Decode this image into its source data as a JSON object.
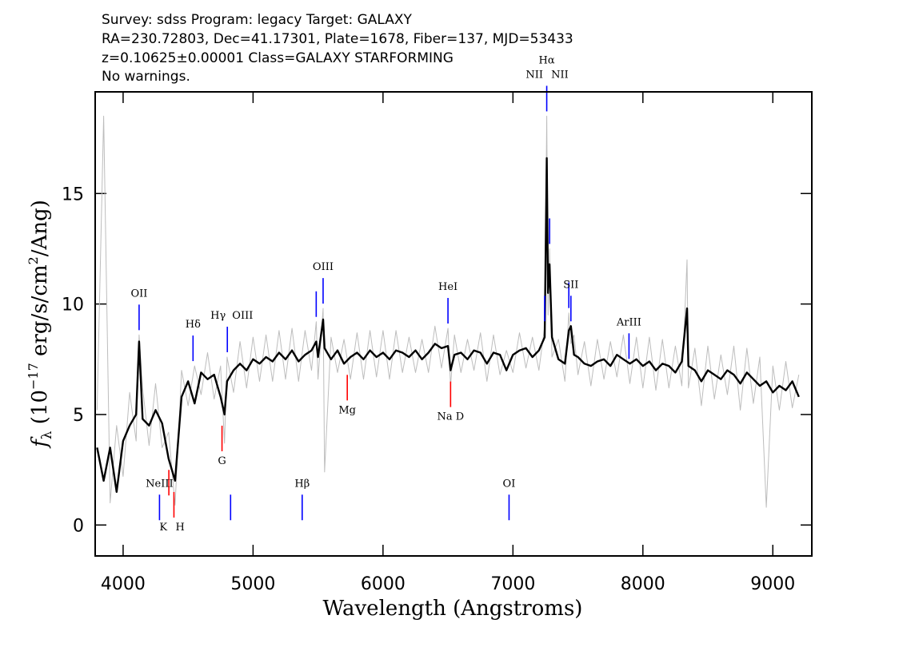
{
  "chart_data": {
    "type": "line",
    "header_lines": [
      "Survey: sdss Program: legacy Target: GALAXY",
      "RA=230.72803, Dec=41.17301, Plate=1678, Fiber=137, MJD=53433",
      "z=0.10625±0.00001 Class=GALAXY STARFORMING",
      "No warnings."
    ],
    "xlabel": "Wavelength (Angstroms)",
    "ylabel_parts": [
      "f",
      "λ",
      " (10",
      "−17",
      " erg/s/cm",
      "2",
      "/Ang)"
    ],
    "xlim": [
      3785,
      9300
    ],
    "ylim": [
      -1.4,
      19.6
    ],
    "xticks": [
      4000,
      5000,
      6000,
      7000,
      8000,
      9000
    ],
    "yticks": [
      0,
      5,
      10,
      15
    ],
    "x": [
      3800,
      3850,
      3900,
      3950,
      4000,
      4050,
      4100,
      4123,
      4150,
      4200,
      4250,
      4300,
      4350,
      4400,
      4450,
      4500,
      4550,
      4600,
      4650,
      4700,
      4750,
      4780,
      4800,
      4850,
      4900,
      4950,
      5000,
      5050,
      5100,
      5150,
      5200,
      5250,
      5300,
      5350,
      5400,
      5450,
      5486,
      5500,
      5539,
      5550,
      5600,
      5650,
      5700,
      5750,
      5800,
      5850,
      5900,
      5950,
      6000,
      6050,
      6100,
      6150,
      6200,
      6250,
      6300,
      6350,
      6400,
      6450,
      6500,
      6520,
      6550,
      6600,
      6650,
      6700,
      6750,
      6800,
      6850,
      6900,
      6950,
      7000,
      7050,
      7100,
      7150,
      7200,
      7244,
      7260,
      7270,
      7282,
      7300,
      7350,
      7400,
      7430,
      7446,
      7470,
      7500,
      7550,
      7600,
      7650,
      7700,
      7750,
      7800,
      7850,
      7900,
      7950,
      8000,
      8050,
      8100,
      8150,
      8200,
      8250,
      8300,
      8340,
      8350,
      8400,
      8450,
      8500,
      8550,
      8600,
      8650,
      8700,
      8750,
      8800,
      8850,
      8900,
      8950,
      9000,
      9050,
      9100,
      9150,
      9200
    ],
    "series": [
      {
        "color": "#bdbdbd",
        "values": [
          5.2,
          18.5,
          1.0,
          4.5,
          2.2,
          6.0,
          3.8,
          8.6,
          6.2,
          3.6,
          6.4,
          3.5,
          4.2,
          0.9,
          7.0,
          5.4,
          7.2,
          5.9,
          7.8,
          5.7,
          7.2,
          3.7,
          7.6,
          6.0,
          8.3,
          6.2,
          8.5,
          6.5,
          8.6,
          6.5,
          8.8,
          6.6,
          8.9,
          6.5,
          8.8,
          7.0,
          9.2,
          6.6,
          9.8,
          2.4,
          8.5,
          6.9,
          8.4,
          6.6,
          8.7,
          6.6,
          8.8,
          6.7,
          8.8,
          6.6,
          8.8,
          6.9,
          8.5,
          6.9,
          8.4,
          6.9,
          9.0,
          7.1,
          8.9,
          6.3,
          8.6,
          6.9,
          8.4,
          7.0,
          8.7,
          6.5,
          8.6,
          6.8,
          7.9,
          6.9,
          8.7,
          7.1,
          8.5,
          7.0,
          9.0,
          18.5,
          9.5,
          12.5,
          7.6,
          8.4,
          6.5,
          9.6,
          8.2,
          8.6,
          6.8,
          8.3,
          6.3,
          8.4,
          6.6,
          8.3,
          6.7,
          8.6,
          6.4,
          8.5,
          6.2,
          8.5,
          6.1,
          8.4,
          6.2,
          8.1,
          6.3,
          12.0,
          6.2,
          8.0,
          5.4,
          8.1,
          5.7,
          7.7,
          5.9,
          8.1,
          5.2,
          8.0,
          5.5,
          7.6,
          0.8,
          7.2,
          5.2,
          7.4,
          5.3,
          6.8
        ]
      },
      {
        "color": "#000000",
        "values": [
          3.5,
          2.0,
          3.5,
          1.5,
          3.8,
          4.5,
          5.0,
          8.3,
          4.8,
          4.5,
          5.2,
          4.6,
          3.0,
          2.0,
          5.8,
          6.5,
          5.5,
          6.9,
          6.6,
          6.8,
          5.8,
          5.0,
          6.5,
          7.0,
          7.3,
          7.0,
          7.5,
          7.3,
          7.6,
          7.4,
          7.8,
          7.5,
          7.9,
          7.4,
          7.7,
          7.9,
          8.3,
          7.6,
          9.3,
          8.0,
          7.5,
          7.9,
          7.3,
          7.6,
          7.8,
          7.5,
          7.9,
          7.6,
          7.8,
          7.5,
          7.9,
          7.8,
          7.6,
          7.9,
          7.5,
          7.8,
          8.2,
          8.0,
          8.1,
          7.0,
          7.7,
          7.8,
          7.5,
          7.9,
          7.8,
          7.3,
          7.8,
          7.7,
          7.0,
          7.7,
          7.9,
          8.0,
          7.6,
          7.9,
          8.5,
          16.6,
          10.5,
          11.8,
          8.5,
          7.5,
          7.3,
          8.8,
          9.0,
          7.7,
          7.6,
          7.3,
          7.2,
          7.4,
          7.5,
          7.2,
          7.7,
          7.5,
          7.3,
          7.5,
          7.2,
          7.4,
          7.0,
          7.3,
          7.2,
          6.9,
          7.4,
          9.8,
          7.2,
          7.0,
          6.5,
          7.0,
          6.8,
          6.6,
          7.0,
          6.8,
          6.4,
          6.9,
          6.6,
          6.3,
          6.5,
          6.0,
          6.3,
          6.1,
          6.5,
          5.8
        ]
      }
    ],
    "emission_color": "#0000ff",
    "absorption_color": "#ff0000",
    "markers": [
      {
        "label": "OII",
        "x": 4123,
        "kind": "emission"
      },
      {
        "label": "NeIII",
        "x": 4280,
        "kind": "emission"
      },
      {
        "label": "Hδ",
        "x": 4538,
        "kind": "emission"
      },
      {
        "label": "Hγ",
        "x": 4802,
        "kind": "emission"
      },
      {
        "label": "OIII",
        "x": 4827,
        "kind": "emission"
      },
      {
        "label": "Hβ",
        "x": 5378,
        "kind": "emission"
      },
      {
        "label": null,
        "x": 5486,
        "kind": "emission"
      },
      {
        "label": "OIII",
        "x": 5539,
        "kind": "emission"
      },
      {
        "label": "HeI",
        "x": 6500,
        "kind": "emission"
      },
      {
        "label": "OI",
        "x": 6970,
        "kind": "emission"
      },
      {
        "label": "NII",
        "x": 7244,
        "kind": "emission"
      },
      {
        "label": "Hα",
        "x": 7260,
        "kind": "emission"
      },
      {
        "label": "NII",
        "x": 7282,
        "kind": "emission"
      },
      {
        "label": null,
        "x": 7430,
        "kind": "emission"
      },
      {
        "label": "SII",
        "x": 7446,
        "kind": "emission"
      },
      {
        "label": "ArIII",
        "x": 7893,
        "kind": "emission"
      },
      {
        "label": "K",
        "x": 4352,
        "kind": "absorption"
      },
      {
        "label": "H",
        "x": 4391,
        "kind": "absorption"
      },
      {
        "label": "G",
        "x": 4761,
        "kind": "absorption"
      },
      {
        "label": "Mg",
        "x": 5725,
        "kind": "absorption"
      },
      {
        "label": "Na D",
        "x": 6520,
        "kind": "absorption"
      }
    ]
  }
}
